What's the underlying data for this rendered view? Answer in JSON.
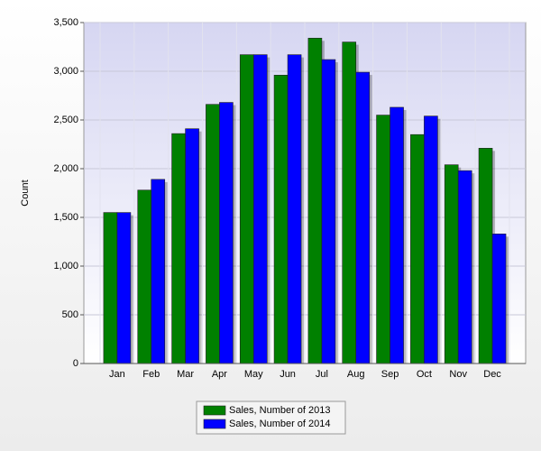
{
  "chart_data": {
    "type": "bar",
    "y_label": "Count",
    "categories": [
      "Jan",
      "Feb",
      "Mar",
      "Apr",
      "May",
      "Jun",
      "Jul",
      "Aug",
      "Sep",
      "Oct",
      "Nov",
      "Dec"
    ],
    "series": [
      {
        "name": "Sales, Number of 2013",
        "color": "#008000",
        "values": [
          1550,
          1780,
          2360,
          2660,
          3170,
          2960,
          3340,
          3300,
          2550,
          2350,
          2040,
          2210
        ]
      },
      {
        "name": "Sales, Number of 2014",
        "color": "#0000ff",
        "values": [
          1550,
          1890,
          2410,
          2680,
          3170,
          3170,
          3120,
          2990,
          2630,
          2540,
          1980,
          1330
        ]
      }
    ],
    "ylim": [
      0,
      3500
    ],
    "yticks": [
      0,
      500,
      {
        "value": 1000,
        "label": "1,000"
      },
      {
        "value": 1500,
        "label": "1,500"
      },
      {
        "value": 2000,
        "label": "2,000"
      },
      {
        "value": 2500,
        "label": "2,500"
      },
      {
        "value": 3000,
        "label": "3,000"
      },
      {
        "value": 3500,
        "label": "3,500"
      }
    ],
    "grid": true
  }
}
